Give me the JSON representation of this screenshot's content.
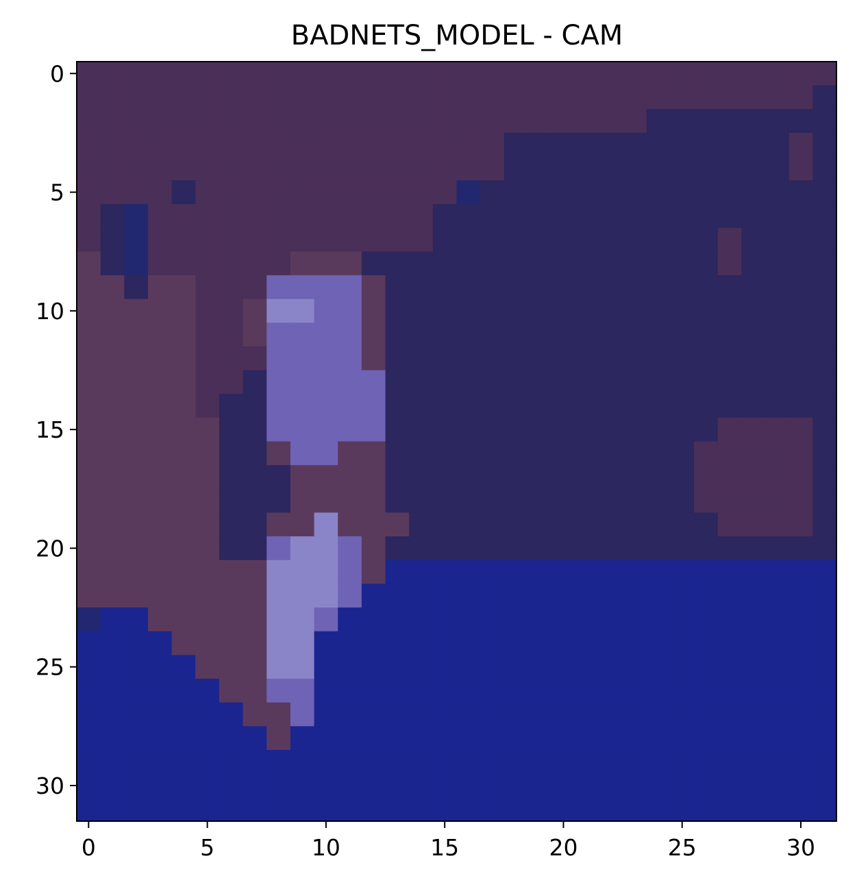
{
  "chart_data": {
    "type": "heatmap",
    "title": "BADNETS_MODEL - CAM",
    "xlabel": "",
    "ylabel": "",
    "xlim": [
      -0.5,
      31.5
    ],
    "ylim": [
      31.5,
      -0.5
    ],
    "x_ticks": [
      "0",
      "5",
      "10",
      "15",
      "20",
      "25",
      "30"
    ],
    "y_ticks": [
      "0",
      "5",
      "10",
      "15",
      "20",
      "25",
      "30"
    ],
    "grid": false,
    "palette": [
      "#1a2590",
      "#21286f",
      "#2c275e",
      "#4a2f58",
      "#5a3a5c",
      "#6f63b5",
      "#8a85c8"
    ],
    "rows": [
      "33333333333333333333333333333333",
      "33333333333333333333333333333332",
      "33333333333333333333333322222222",
      "33333333333333333322222222222232",
      "33333333333333333322222222222232",
      "33332333333333331222222222222222",
      "32133333333333322222222222222222",
      "32133333333333322222222222232222",
      "42133333344422222222222222232222",
      "44244333555542222222222222222222",
      "44444334665542222222222222222222",
      "44444334555542222222222222222222",
      "44444333555542222222222222222222",
      "44444332555552222222222222222222",
      "44444322555552222222222222222222",
      "44444422555552222222222222233332",
      "44444422455442222222222222333332",
      "44444422244442222222222222333332",
      "44444422244442222222222222333332",
      "44444422446444222222222222233332",
      "44444422566542222222222222222222",
      "44444444666540000000000000000000",
      "44444444666500000000000000000000",
      "10044444665000000000000000000000",
      "00004444660000000000000000000000",
      "00000444660000000000000000000000",
      "00000044550000000000000000000000",
      "00000004450000000000000000000000",
      "00000000400000000000000000000000",
      "00000000000000000000000000000000",
      "00000000000000000000000000000000",
      "00000000000000000000000000000000"
    ]
  }
}
